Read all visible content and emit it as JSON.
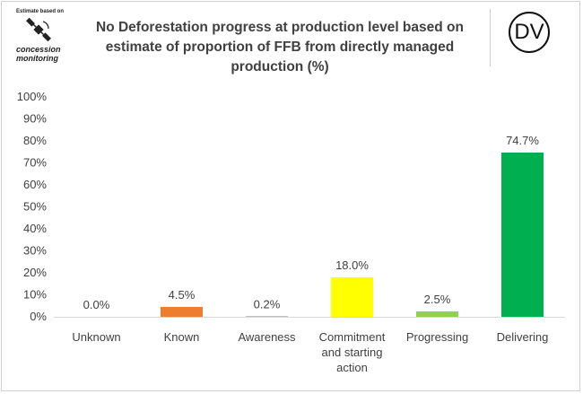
{
  "logo": {
    "top_text": "Estimate based on",
    "line1": "concession",
    "line2": "monitoring",
    "icon": "satellite-icon"
  },
  "badge": {
    "text": "DV"
  },
  "chart_data": {
    "type": "bar",
    "title": "No Deforestation progress at production level based on estimate of proportion of FFB from directly managed production (%)",
    "title_lines": [
      "No Deforestation progress at production level based on",
      "estimate of proportion of FFB from directly managed",
      "production (%)"
    ],
    "categories": [
      "Unknown",
      "Known",
      "Awareness",
      "Commitment and starting action",
      "Progressing",
      "Delivering"
    ],
    "category_lines": [
      [
        "Unknown"
      ],
      [
        "Known"
      ],
      [
        "Awareness"
      ],
      [
        "Commitment",
        "and starting",
        "action"
      ],
      [
        "Progressing"
      ],
      [
        "Delivering"
      ]
    ],
    "values": [
      0.0,
      4.5,
      0.2,
      18.0,
      2.5,
      74.7
    ],
    "data_labels": [
      "0.0%",
      "4.5%",
      "0.2%",
      "18.0%",
      "2.5%",
      "74.7%"
    ],
    "colors": [
      "#7f7f7f",
      "#ed7d31",
      "#7f7f7f",
      "#ffff00",
      "#92d050",
      "#00b050"
    ],
    "yticks": [
      "0%",
      "10%",
      "20%",
      "30%",
      "40%",
      "50%",
      "60%",
      "70%",
      "80%",
      "90%",
      "100%"
    ],
    "ylim": [
      0,
      100
    ],
    "grid": false,
    "xlabel": "",
    "ylabel": ""
  }
}
